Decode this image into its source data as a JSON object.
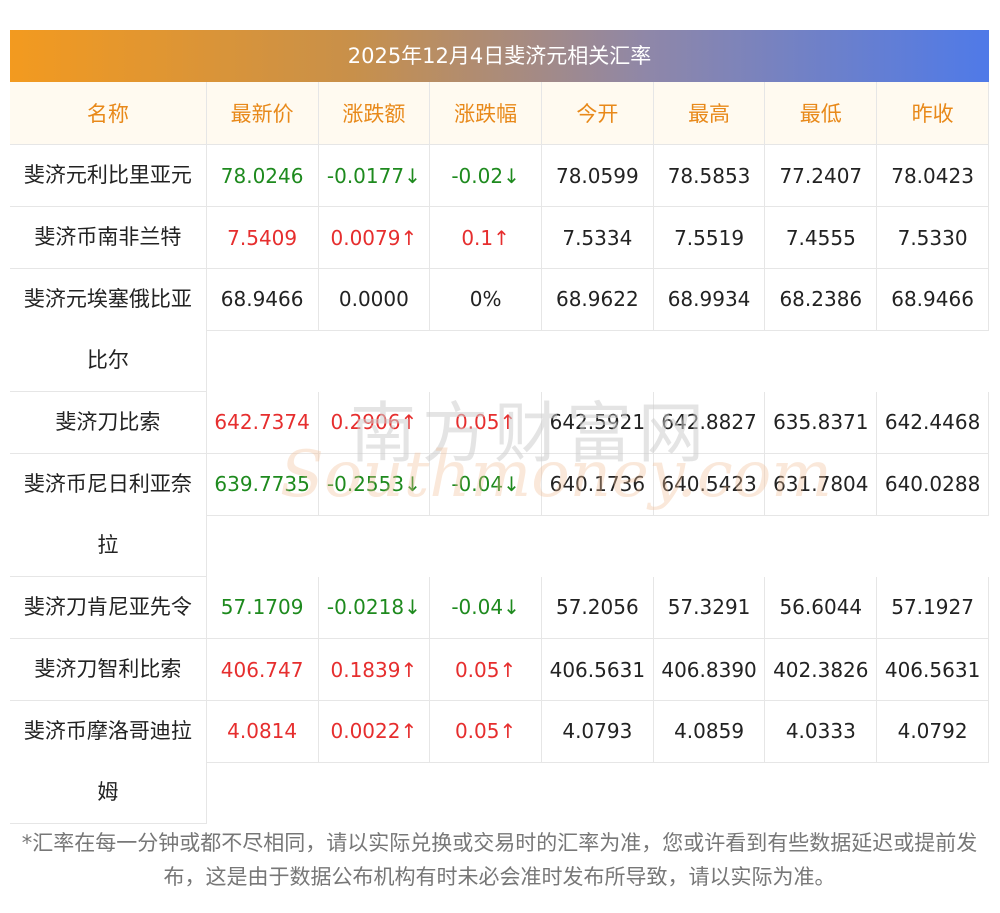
{
  "title": "2025年12月4日斐济元相关汇率",
  "headers": [
    "名称",
    "最新价",
    "涨跌额",
    "涨跌幅",
    "今开",
    "最高",
    "最低",
    "昨收"
  ],
  "rows": [
    {
      "name_line1": "斐济元利比里亚元",
      "name_line2": "",
      "latest": "78.0246",
      "change": "-0.0177↓",
      "pct": "-0.02↓",
      "open": "78.0599",
      "high": "78.5853",
      "low": "77.2407",
      "prev": "78.0423",
      "trend": "down"
    },
    {
      "name_line1": "斐济币南非兰特",
      "name_line2": "",
      "latest": "7.5409",
      "change": "0.0079↑",
      "pct": "0.1↑",
      "open": "7.5334",
      "high": "7.5519",
      "low": "7.4555",
      "prev": "7.5330",
      "trend": "up"
    },
    {
      "name_line1": "斐济元埃塞俄比亚",
      "name_line2": "比尔",
      "latest": "68.9466",
      "change": "0.0000",
      "pct": "0%",
      "open": "68.9622",
      "high": "68.9934",
      "low": "68.2386",
      "prev": "68.9466",
      "trend": "flat"
    },
    {
      "name_line1": "斐济刀比索",
      "name_line2": "",
      "latest": "642.7374",
      "change": "0.2906↑",
      "pct": "0.05↑",
      "open": "642.5921",
      "high": "642.8827",
      "low": "635.8371",
      "prev": "642.4468",
      "trend": "up"
    },
    {
      "name_line1": "斐济币尼日利亚奈",
      "name_line2": "拉",
      "latest": "639.7735",
      "change": "-0.2553↓",
      "pct": "-0.04↓",
      "open": "640.1736",
      "high": "640.5423",
      "low": "631.7804",
      "prev": "640.0288",
      "trend": "down"
    },
    {
      "name_line1": "斐济刀肯尼亚先令",
      "name_line2": "",
      "latest": "57.1709",
      "change": "-0.0218↓",
      "pct": "-0.04↓",
      "open": "57.2056",
      "high": "57.3291",
      "low": "56.6044",
      "prev": "57.1927",
      "trend": "down"
    },
    {
      "name_line1": "斐济刀智利比索",
      "name_line2": "",
      "latest": "406.747",
      "change": "0.1839↑",
      "pct": "0.05↑",
      "open": "406.5631",
      "high": "406.8390",
      "low": "402.3826",
      "prev": "406.5631",
      "trend": "up"
    },
    {
      "name_line1": "斐济币摩洛哥迪拉",
      "name_line2": "姆",
      "latest": "4.0814",
      "change": "0.0022↑",
      "pct": "0.05↑",
      "open": "4.0793",
      "high": "4.0859",
      "low": "4.0333",
      "prev": "4.0792",
      "trend": "up"
    }
  ],
  "watermark": {
    "cn": "南方财富网",
    "en": "Southmoney.com"
  },
  "note": "*汇率在每一分钟或都不尽相同，请以实际兑换或交易时的汇率为准，您或许看到有些数据延迟或提前发布，这是由于数据公布机构有时未必会准时发布所导致，请以实际为准。",
  "colors": {
    "up": "#e62e2e",
    "down": "#1e8a1e",
    "flat": "#222222",
    "header_text": "#e8891a"
  }
}
